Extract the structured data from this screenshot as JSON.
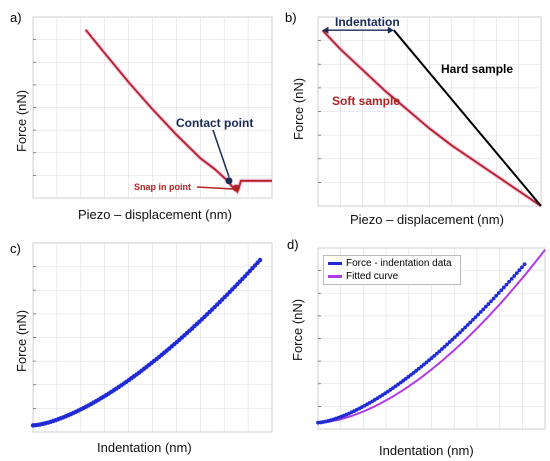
{
  "colors": {
    "red": "#b22222",
    "pink": "#f2a6d6",
    "blue": "#1f2bd6",
    "magenta": "#b23ae6",
    "navy": "#1a2a5a",
    "grid": "#dcdcdc"
  },
  "chart_data": [
    {
      "panel": "a)",
      "type": "line",
      "xlabel": "Piezo – displacement (nm)",
      "ylabel": "Force (nN)",
      "xlim": [
        0,
        10
      ],
      "ylim": [
        0,
        10
      ],
      "grid": true,
      "series": [
        {
          "x": [
            2.2,
            3,
            4,
            5,
            6,
            7,
            7.6,
            8.1,
            8.35,
            8.55,
            8.6,
            8.7,
            10
          ],
          "y": [
            9.3,
            8.0,
            6.4,
            4.9,
            3.5,
            2.2,
            1.6,
            1.0,
            0.6,
            0.35,
            0.5,
            0.95,
            0.95
          ]
        }
      ],
      "annotations": {
        "contact": "Contact point",
        "snap": "Snap in point"
      },
      "points": {
        "contact": [
          8.2,
          0.95
        ],
        "snap": [
          8.5,
          0.55
        ]
      }
    },
    {
      "panel": "b)",
      "type": "line",
      "xlabel": "Piezo – displacement (nm)",
      "ylabel": "Force (nN)",
      "xlim": [
        0,
        10
      ],
      "ylim": [
        0,
        10
      ],
      "grid": true,
      "series": [
        {
          "x": [
            0.2,
            1,
            2,
            3,
            4,
            5,
            6,
            7,
            8,
            9,
            10
          ],
          "y": [
            9.3,
            8.3,
            7.2,
            6.1,
            5.1,
            4.1,
            3.2,
            2.4,
            1.6,
            0.8,
            0
          ]
        },
        {
          "x": [
            3.4,
            10
          ],
          "y": [
            9.3,
            0
          ]
        }
      ],
      "annotations": {
        "indentation": "Indentation",
        "hard": "Hard sample",
        "soft": "Soft sample"
      }
    },
    {
      "panel": "c)",
      "type": "scatter",
      "xlabel": "Indentation (nm)",
      "ylabel": "Force (nN)",
      "xlim": [
        0,
        10
      ],
      "ylim": [
        0,
        10
      ],
      "grid": true,
      "series": [
        {
          "expr": "power",
          "x0": 0,
          "x1": 9.5,
          "ymax": 9.1,
          "exponent": 1.5,
          "count": 90
        }
      ]
    },
    {
      "panel": "d)",
      "type": "line",
      "xlabel": "Indentation (nm)",
      "ylabel": "Force (nN)",
      "xlim": [
        0,
        10
      ],
      "ylim": [
        0,
        10
      ],
      "grid": true,
      "legend": "top-left",
      "series": [
        {
          "name": "Force - indentation data",
          "expr": "power",
          "x0": 0,
          "x1": 9.1,
          "ymax": 9.1,
          "exponent": 1.5,
          "count": 80
        },
        {
          "name": "Fitted curve",
          "expr": "power",
          "x0": 0,
          "x1": 10,
          "ymax": 9.9,
          "exponent": 1.7,
          "count": 60
        }
      ]
    }
  ]
}
